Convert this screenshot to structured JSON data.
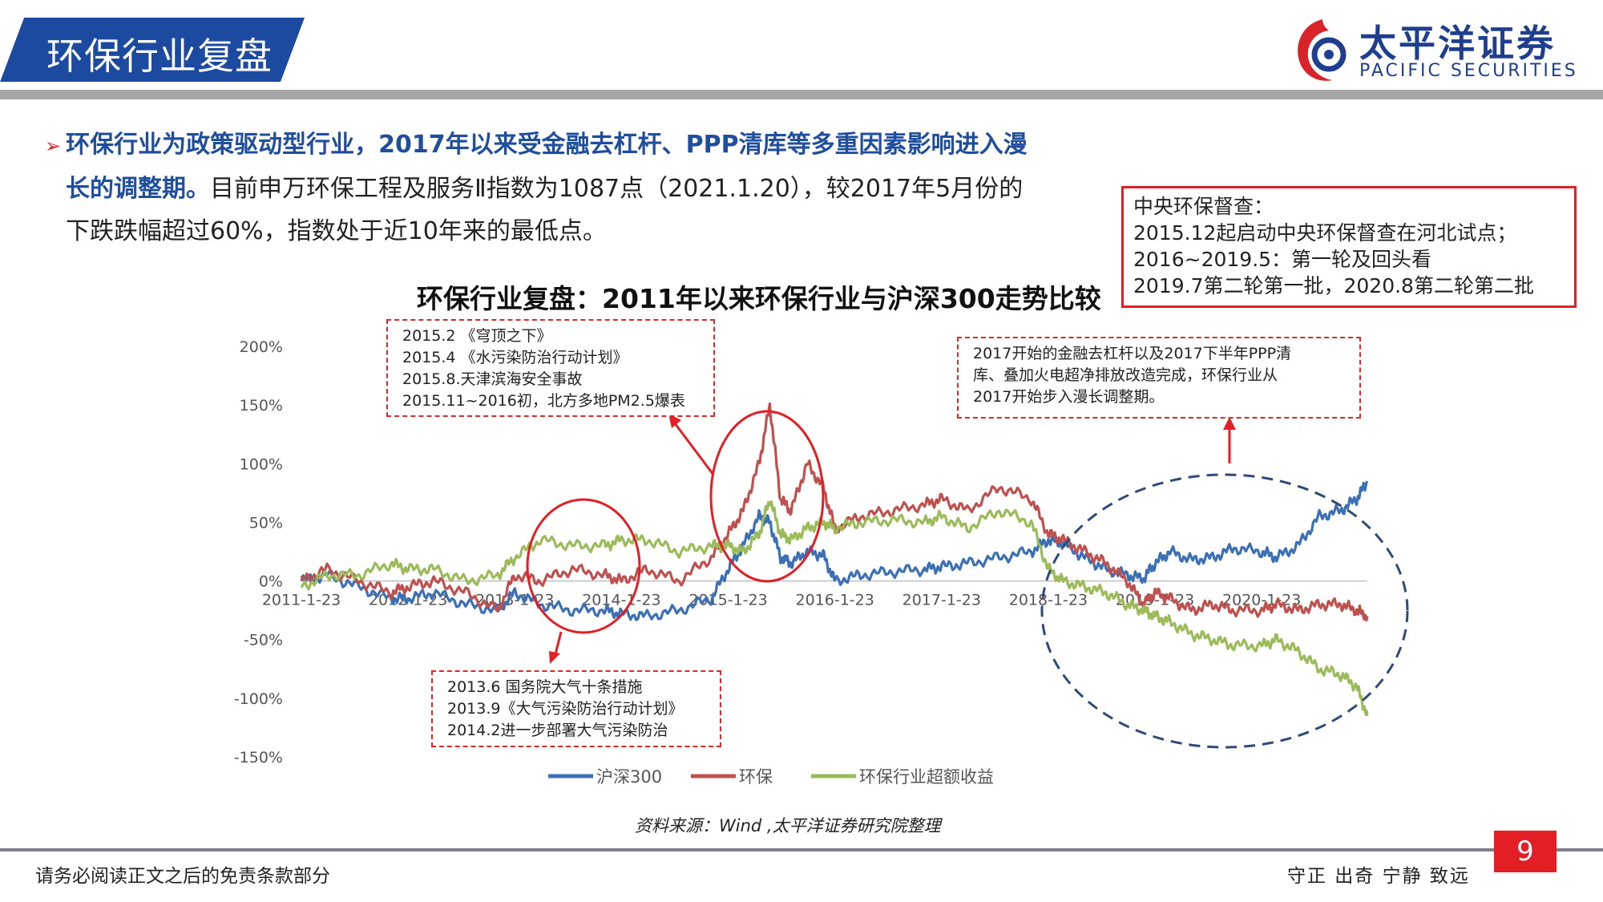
{
  "header": {
    "section_title": "环保行业复盘",
    "logo_cn": "太平洋证券",
    "logo_en": "PACIFIC SECURITIES"
  },
  "bullet": {
    "bold_part1": "环保行业为政策驱动型行业，2017年以来受金融去杠杆、PPP清库等多重因素影响进入漫",
    "bold_part2": "长的调整期。",
    "normal_part2": "目前申万环保工程及服务Ⅱ指数为1087点（2021.1.20），较2017年5月份的",
    "line3": "下跌跌幅超过60%，指数处于近10年来的最低点。"
  },
  "supervision_box": {
    "title": "中央环保督查：",
    "line1": "2015.12起启动中央环保督查在河北试点；",
    "line2": "2016~2019.5：第一轮及回头看",
    "line3": "2019.7第二轮第一批，2020.8第二轮第二批"
  },
  "annotations": {
    "box_2015": [
      "2015.2 《穹顶之下》",
      "2015.4 《水污染防治行动计划》",
      "2015.8.天津滨海安全事故",
      "2015.11~2016初，北方多地PM2.5爆表"
    ],
    "box_2013": [
      "2013.6 国务院大气十条措施",
      "2013.9《大气污染防治行动计划》",
      "2014.2进一步部署大气污染防治"
    ],
    "box_2017": [
      "2017开始的金融去杠杆以及2017下半年PPP清",
      "库、叠加火电超净排放改造完成，环保行业从",
      "2017开始步入漫长调整期。"
    ]
  },
  "chart_data": {
    "type": "line",
    "title": "环保行业复盘：2011年以来环保行业与沪深300走势比较",
    "xlabel": "",
    "ylabel": "",
    "x_ticks": [
      "2011-1-23",
      "2012-1-23",
      "2013-1-23",
      "2014-1-23",
      "2015-1-23",
      "2016-1-23",
      "2017-1-23",
      "2018-1-23",
      "2019-1-23",
      "2020-1-23"
    ],
    "y_ticks": [
      "200%",
      "150%",
      "100%",
      "50%",
      "0%",
      "-50%",
      "-100%",
      "-150%"
    ],
    "ylim": [
      -150,
      200
    ],
    "x_range_years": [
      2011.06,
      2021.05
    ],
    "legend_position": "bottom",
    "series": [
      {
        "name": "沪深300",
        "color": "#3b6fb6",
        "x": [
          2011.06,
          2011.3,
          2011.6,
          2011.9,
          2012.06,
          2012.3,
          2012.6,
          2012.9,
          2013.06,
          2013.3,
          2013.6,
          2013.9,
          2014.06,
          2014.3,
          2014.6,
          2014.9,
          2015.06,
          2015.2,
          2015.35,
          2015.45,
          2015.55,
          2015.65,
          2015.8,
          2015.95,
          2016.06,
          2016.3,
          2016.6,
          2016.9,
          2017.06,
          2017.3,
          2017.6,
          2017.9,
          2018.06,
          2018.2,
          2018.4,
          2018.6,
          2018.8,
          2018.95,
          2019.06,
          2019.2,
          2019.4,
          2019.6,
          2019.8,
          2020.06,
          2020.2,
          2020.4,
          2020.6,
          2020.8,
          2020.95,
          2021.05
        ],
        "values": [
          0,
          5,
          -5,
          -15,
          -15,
          -10,
          -20,
          -25,
          -10,
          -20,
          -25,
          -25,
          -28,
          -30,
          -25,
          -15,
          10,
          30,
          55,
          50,
          20,
          15,
          25,
          22,
          0,
          5,
          8,
          10,
          12,
          15,
          20,
          25,
          35,
          32,
          20,
          10,
          5,
          2,
          15,
          25,
          18,
          20,
          28,
          25,
          20,
          30,
          55,
          60,
          70,
          85
        ]
      },
      {
        "name": "环保",
        "color": "#c0504d",
        "x": [
          2011.06,
          2011.3,
          2011.6,
          2011.9,
          2012.06,
          2012.3,
          2012.6,
          2012.9,
          2013.06,
          2013.3,
          2013.6,
          2013.9,
          2014.06,
          2014.3,
          2014.6,
          2014.9,
          2015.06,
          2015.2,
          2015.35,
          2015.45,
          2015.55,
          2015.65,
          2015.8,
          2015.95,
          2016.06,
          2016.3,
          2016.6,
          2016.9,
          2017.06,
          2017.3,
          2017.6,
          2017.9,
          2018.06,
          2018.2,
          2018.4,
          2018.6,
          2018.8,
          2018.95,
          2019.06,
          2019.2,
          2019.4,
          2019.6,
          2019.8,
          2020.06,
          2020.2,
          2020.4,
          2020.6,
          2020.8,
          2020.95,
          2021.05
        ],
        "values": [
          0,
          10,
          0,
          -10,
          -5,
          0,
          -10,
          -25,
          5,
          0,
          10,
          5,
          0,
          10,
          0,
          20,
          40,
          60,
          100,
          150,
          70,
          60,
          100,
          80,
          45,
          55,
          60,
          65,
          70,
          60,
          80,
          70,
          40,
          35,
          25,
          15,
          0,
          -20,
          -10,
          -15,
          -25,
          -20,
          -25,
          -25,
          -20,
          -25,
          -20,
          -20,
          -25,
          -30
        ]
      },
      {
        "name": "环保行业超额收益",
        "color": "#9bbb59",
        "x": [
          2011.06,
          2011.3,
          2011.6,
          2011.9,
          2012.06,
          2012.3,
          2012.6,
          2012.9,
          2013.06,
          2013.3,
          2013.6,
          2013.9,
          2014.06,
          2014.3,
          2014.6,
          2014.9,
          2015.06,
          2015.2,
          2015.35,
          2015.45,
          2015.55,
          2015.65,
          2015.8,
          2015.95,
          2016.06,
          2016.3,
          2016.6,
          2016.9,
          2017.06,
          2017.3,
          2017.6,
          2017.9,
          2018.06,
          2018.2,
          2018.4,
          2018.6,
          2018.8,
          2018.95,
          2019.06,
          2019.2,
          2019.4,
          2019.6,
          2019.8,
          2020.06,
          2020.2,
          2020.4,
          2020.6,
          2020.8,
          2020.95,
          2021.05
        ],
        "values": [
          -5,
          5,
          5,
          15,
          10,
          10,
          0,
          5,
          20,
          35,
          30,
          30,
          35,
          35,
          25,
          30,
          30,
          25,
          40,
          70,
          40,
          35,
          45,
          50,
          45,
          50,
          52,
          50,
          55,
          45,
          60,
          50,
          10,
          0,
          -5,
          -10,
          -20,
          -25,
          -30,
          -35,
          -45,
          -50,
          -55,
          -55,
          -50,
          -60,
          -75,
          -80,
          -90,
          -115
        ]
      }
    ]
  },
  "source": "资料来源：Wind ,太平洋证券研究院整理",
  "footer": {
    "disclaimer": "请务必阅读正文之后的免责条款部分",
    "motto": "守正 出奇 宁静 致远",
    "page_number": "9"
  }
}
